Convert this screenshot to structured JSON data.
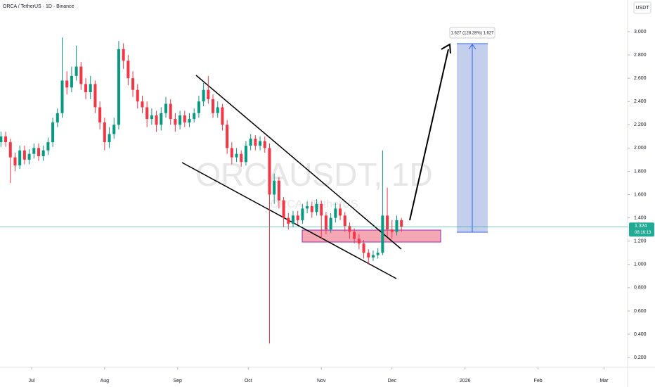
{
  "chart_data": {
    "type": "candlestick",
    "title": "ORCA / TetherUS · 1D · Binance",
    "currency": "USDT",
    "watermark": "ORCAUSDT, 1D",
    "watermark_sub": "ORCA / TetherUS",
    "measure_label": "1.627 (128.28%) 1,627",
    "last_price": 1.324,
    "countdown": "08:16:13",
    "last_price_color": "#22ab94",
    "up_color": "#089981",
    "down_color": "#f23645",
    "x": [
      -13,
      -11,
      -9,
      -7,
      -5,
      -3,
      -1,
      1,
      3,
      5,
      7,
      9,
      11,
      13,
      15,
      17,
      19,
      21,
      23,
      25,
      27,
      29,
      31,
      33,
      35,
      37,
      39,
      41,
      43,
      45,
      47,
      49,
      51,
      53,
      55,
      57,
      59,
      61,
      63,
      65,
      67,
      69,
      71,
      73,
      75,
      77,
      79,
      81,
      83,
      85,
      87,
      89,
      91,
      93,
      95,
      97,
      99,
      101,
      103,
      105,
      107,
      109,
      111,
      113,
      115,
      117,
      119,
      121,
      123,
      125,
      127,
      129,
      131,
      133,
      135,
      137,
      139,
      141,
      143,
      145,
      147,
      149,
      151,
      153,
      155,
      157
    ],
    "open": [
      2.05,
      2.1,
      2.05,
      1.92,
      1.85,
      1.98,
      1.9,
      1.95,
      2.0,
      1.93,
      1.98,
      2.05,
      2.22,
      2.3,
      2.58,
      2.52,
      2.62,
      2.7,
      2.55,
      2.48,
      2.55,
      2.35,
      2.22,
      2.05,
      2.12,
      2.2,
      2.85,
      2.75,
      2.6,
      2.5,
      2.4,
      2.35,
      2.25,
      2.28,
      2.2,
      2.3,
      2.38,
      2.25,
      2.2,
      2.28,
      2.22,
      2.25,
      2.3,
      2.4,
      2.5,
      2.42,
      2.3,
      2.35,
      2.2,
      2.0,
      1.92,
      1.95,
      1.88,
      2.02,
      2.08,
      2.02,
      2.06,
      2.0,
      1.6,
      1.72,
      1.55,
      1.4,
      1.35,
      1.42,
      1.38,
      1.48,
      1.5,
      1.45,
      1.52,
      1.42,
      1.3,
      1.4,
      1.48,
      1.42,
      1.33,
      1.28,
      1.22,
      1.18,
      1.1,
      1.06,
      1.08,
      1.1,
      1.42,
      1.3,
      1.28,
      1.38
    ],
    "high": [
      2.14,
      2.14,
      2.08,
      1.96,
      2.02,
      2.02,
      1.99,
      2.04,
      2.04,
      2.02,
      2.09,
      2.26,
      2.34,
      2.95,
      2.66,
      2.7,
      2.88,
      2.74,
      2.6,
      2.62,
      2.58,
      2.4,
      2.26,
      2.18,
      2.26,
      2.92,
      2.9,
      2.8,
      2.66,
      2.55,
      2.45,
      2.4,
      2.34,
      2.32,
      2.35,
      2.44,
      2.42,
      2.3,
      2.32,
      2.32,
      2.3,
      2.34,
      2.45,
      2.56,
      2.62,
      2.46,
      2.4,
      2.38,
      2.24,
      2.05,
      2.0,
      1.98,
      2.06,
      2.12,
      2.11,
      2.1,
      2.1,
      2.04,
      1.78,
      1.75,
      1.58,
      1.44,
      1.46,
      1.46,
      1.52,
      1.54,
      1.54,
      1.56,
      1.55,
      1.45,
      1.44,
      1.53,
      1.52,
      1.45,
      1.36,
      1.31,
      1.26,
      1.21,
      1.13,
      1.12,
      1.14,
      1.98,
      1.66,
      1.38,
      1.42,
      1.4
    ],
    "low": [
      2.01,
      2.01,
      1.7,
      1.8,
      1.82,
      1.86,
      1.86,
      1.91,
      1.89,
      1.89,
      1.94,
      2.01,
      2.18,
      2.26,
      2.46,
      2.48,
      2.58,
      2.5,
      2.42,
      2.42,
      2.3,
      2.16,
      1.98,
      2.0,
      2.08,
      2.16,
      2.68,
      2.54,
      2.44,
      2.34,
      2.3,
      2.18,
      2.2,
      2.14,
      2.15,
      2.26,
      2.2,
      2.14,
      2.16,
      2.18,
      2.18,
      2.22,
      2.26,
      2.36,
      2.38,
      2.26,
      2.26,
      2.15,
      1.95,
      1.86,
      1.88,
      1.84,
      1.85,
      1.98,
      1.98,
      1.98,
      1.96,
      0.32,
      1.52,
      1.48,
      1.32,
      1.3,
      1.32,
      1.34,
      1.35,
      1.44,
      1.4,
      1.42,
      1.22,
      1.26,
      1.27,
      1.36,
      1.38,
      1.28,
      1.22,
      1.18,
      1.13,
      1.05,
      1.0,
      1.03,
      1.05,
      1.08,
      1.24,
      1.22,
      1.25,
      1.28
    ],
    "close": [
      2.1,
      2.05,
      1.92,
      1.85,
      1.98,
      1.9,
      1.95,
      2.0,
      1.93,
      1.98,
      2.05,
      2.22,
      2.3,
      2.58,
      2.52,
      2.62,
      2.7,
      2.55,
      2.48,
      2.55,
      2.35,
      2.22,
      2.05,
      2.12,
      2.2,
      2.85,
      2.75,
      2.6,
      2.5,
      2.4,
      2.35,
      2.25,
      2.28,
      2.2,
      2.3,
      2.38,
      2.25,
      2.2,
      2.28,
      2.22,
      2.25,
      2.3,
      2.4,
      2.5,
      2.42,
      2.3,
      2.35,
      2.2,
      2.0,
      1.92,
      1.95,
      1.88,
      2.02,
      2.08,
      2.02,
      2.06,
      2.0,
      1.6,
      1.72,
      1.55,
      1.4,
      1.35,
      1.42,
      1.38,
      1.48,
      1.5,
      1.45,
      1.52,
      1.42,
      1.3,
      1.4,
      1.48,
      1.42,
      1.33,
      1.28,
      1.22,
      1.18,
      1.1,
      1.06,
      1.08,
      1.1,
      1.42,
      1.3,
      1.28,
      1.38,
      1.324
    ],
    "xlim": [
      -13.4,
      253
    ],
    "ylim": [
      0.116,
      3.272
    ],
    "xticks": [
      {
        "value": 0,
        "label": "Jul"
      },
      {
        "value": 31,
        "label": "Aug"
      },
      {
        "value": 62,
        "label": "Sep"
      },
      {
        "value": 92,
        "label": "Oct"
      },
      {
        "value": 123,
        "label": "Nov"
      },
      {
        "value": 153,
        "label": "Dec"
      },
      {
        "value": 184,
        "label": "2026"
      },
      {
        "value": 215,
        "label": "Feb"
      },
      {
        "value": 243,
        "label": "Mar"
      }
    ],
    "yticks": [
      {
        "value": 0.2,
        "label": "0.200"
      },
      {
        "value": 0.4,
        "label": "0.400"
      },
      {
        "value": 0.6,
        "label": "0.600"
      },
      {
        "value": 0.8,
        "label": "0.800"
      },
      {
        "value": 1.0,
        "label": "1.000"
      },
      {
        "value": 1.2,
        "label": "1.200"
      },
      {
        "value": 1.4,
        "label": "1.400"
      },
      {
        "value": 1.6,
        "label": "1.600"
      },
      {
        "value": 1.8,
        "label": "1.800"
      },
      {
        "value": 2.0,
        "label": "2.000"
      },
      {
        "value": 2.2,
        "label": "2.200"
      },
      {
        "value": 2.4,
        "label": "2.400"
      },
      {
        "value": 2.6,
        "label": "2.600"
      },
      {
        "value": 2.8,
        "label": "2.800"
      },
      {
        "value": 3.0,
        "label": "3.000"
      }
    ]
  }
}
